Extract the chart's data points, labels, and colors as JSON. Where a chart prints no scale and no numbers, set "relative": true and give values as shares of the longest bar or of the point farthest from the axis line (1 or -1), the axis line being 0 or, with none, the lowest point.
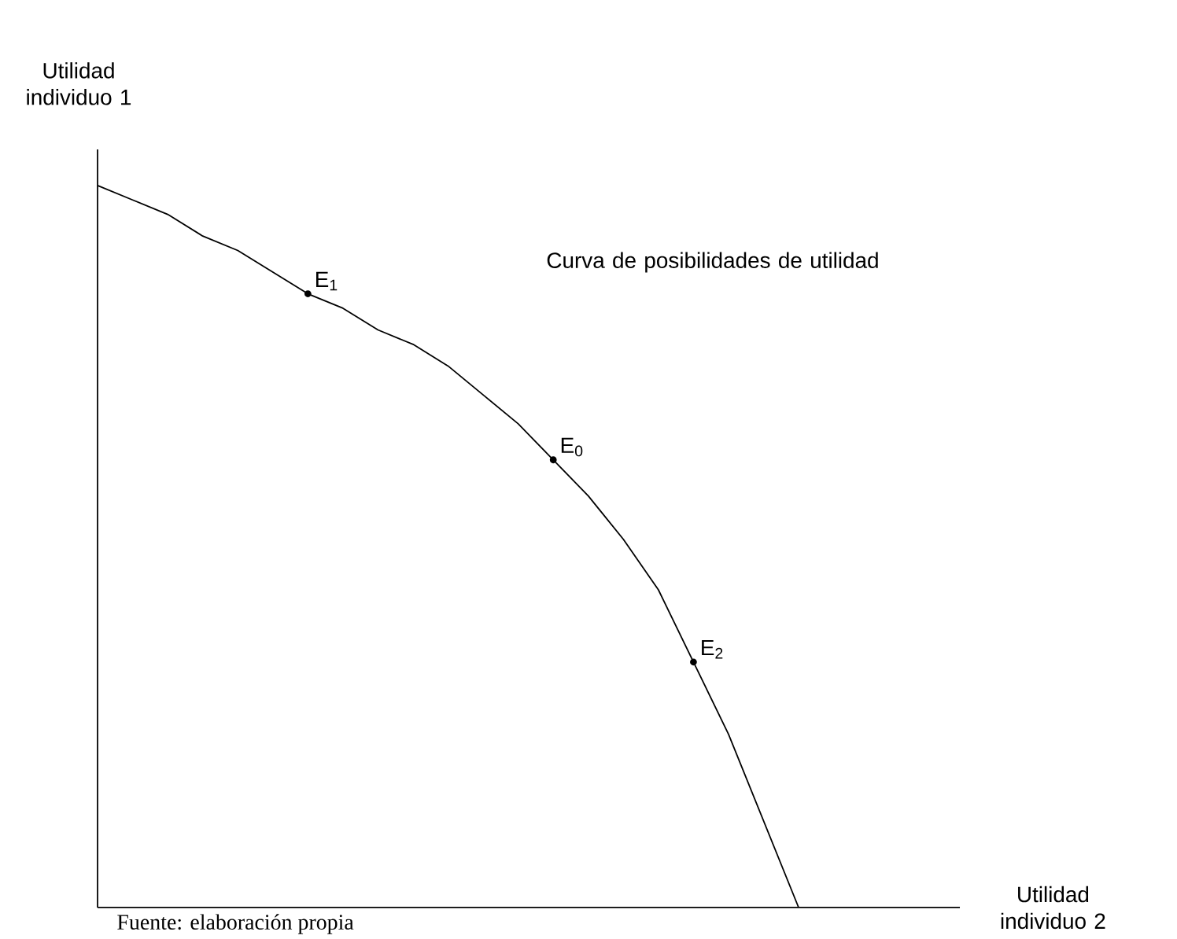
{
  "chart_data": {
    "type": "line",
    "relative": true,
    "ylabel": "Utilidad individuo 1",
    "annotations": [
      "Curva de posibilidades de utilidad",
      "Utilidad individuo 2",
      "E$_{1}$",
      "E$_{0}$",
      "E$_{2}$",
      "Fuente: elaboración propia"
    ],
    "categories": [
      null,
      null,
      null,
      null,
      null,
      null,
      null,
      null,
      null,
      null,
      null,
      null,
      null,
      null,
      null,
      null,
      null,
      null,
      null,
      null,
      null
    ],
    "series": [
      {
        "color": "#000000",
        "values": [
          1,
          0.98,
          0.96,
          0.93,
          0.91,
          0.88,
          0.85,
          0.83,
          0.8,
          0.78,
          0.75,
          0.71,
          0.67,
          0.62,
          0.57,
          0.51,
          0.44,
          0.34,
          0.24,
          0.12,
          0
        ]
      }
    ]
  }
}
